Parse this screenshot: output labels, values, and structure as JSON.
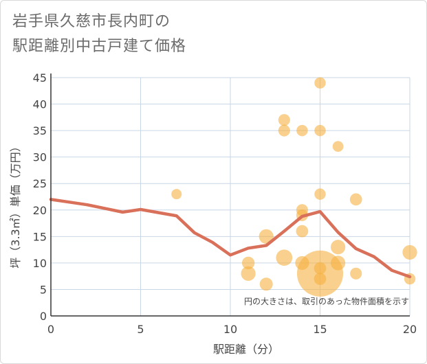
{
  "title_line1": "岩手県久慈市長内町の",
  "title_line2": "駅距離別中古戸建て価格",
  "chart_data": {
    "type": "scatter",
    "xlabel": "駅距離（分）",
    "ylabel": "坪（3.3㎡）単価（万円）",
    "xlim": [
      0,
      20
    ],
    "ylim": [
      0,
      45
    ],
    "xticks": [
      0,
      5,
      10,
      15,
      20
    ],
    "yticks": [
      0,
      5,
      10,
      15,
      20,
      25,
      30,
      35,
      40,
      45
    ],
    "grid": true,
    "annotation": "円の大きさは、取引のあった物件面積を示す",
    "colors": {
      "bubble": "#f5b041",
      "line": "#d9705a",
      "grid": "#c9d6e6",
      "axis": "#333333"
    },
    "points": [
      {
        "x": 7,
        "y": 23,
        "size": 1
      },
      {
        "x": 11,
        "y": 10,
        "size": 1.5
      },
      {
        "x": 11,
        "y": 8,
        "size": 2
      },
      {
        "x": 12,
        "y": 15,
        "size": 2
      },
      {
        "x": 12,
        "y": 6,
        "size": 1.6
      },
      {
        "x": 13,
        "y": 37,
        "size": 1.3
      },
      {
        "x": 13,
        "y": 35,
        "size": 1.3
      },
      {
        "x": 13,
        "y": 11,
        "size": 2.5
      },
      {
        "x": 14,
        "y": 35,
        "size": 1.2
      },
      {
        "x": 14,
        "y": 20,
        "size": 1.3
      },
      {
        "x": 14,
        "y": 19,
        "size": 1.3
      },
      {
        "x": 14,
        "y": 16,
        "size": 1.4
      },
      {
        "x": 14,
        "y": 10,
        "size": 1.8
      },
      {
        "x": 15,
        "y": 44,
        "size": 1.2
      },
      {
        "x": 15,
        "y": 35,
        "size": 1.2
      },
      {
        "x": 15,
        "y": 23,
        "size": 1.2
      },
      {
        "x": 15,
        "y": 9,
        "size": 1.4
      },
      {
        "x": 15,
        "y": 8,
        "size": 20
      },
      {
        "x": 15,
        "y": 7,
        "size": 1.4
      },
      {
        "x": 16,
        "y": 32,
        "size": 1.1
      },
      {
        "x": 16,
        "y": 13,
        "size": 2
      },
      {
        "x": 16,
        "y": 10,
        "size": 2
      },
      {
        "x": 17,
        "y": 22,
        "size": 1.4
      },
      {
        "x": 17,
        "y": 8,
        "size": 1.3
      },
      {
        "x": 20,
        "y": 12,
        "size": 2
      },
      {
        "x": 20,
        "y": 7,
        "size": 1.2
      }
    ],
    "line": {
      "x": [
        0,
        1,
        2,
        3,
        4,
        5,
        6,
        7,
        8,
        9,
        10,
        11,
        12,
        13,
        14,
        15,
        16,
        17,
        18,
        19,
        20
      ],
      "y": [
        22,
        21.5,
        21,
        20.3,
        19.6,
        20.1,
        19.5,
        18.9,
        15.7,
        13.9,
        11.5,
        12.8,
        13.3,
        16,
        18.8,
        19.7,
        15.8,
        12.7,
        11.2,
        8.6,
        7.4
      ]
    }
  }
}
